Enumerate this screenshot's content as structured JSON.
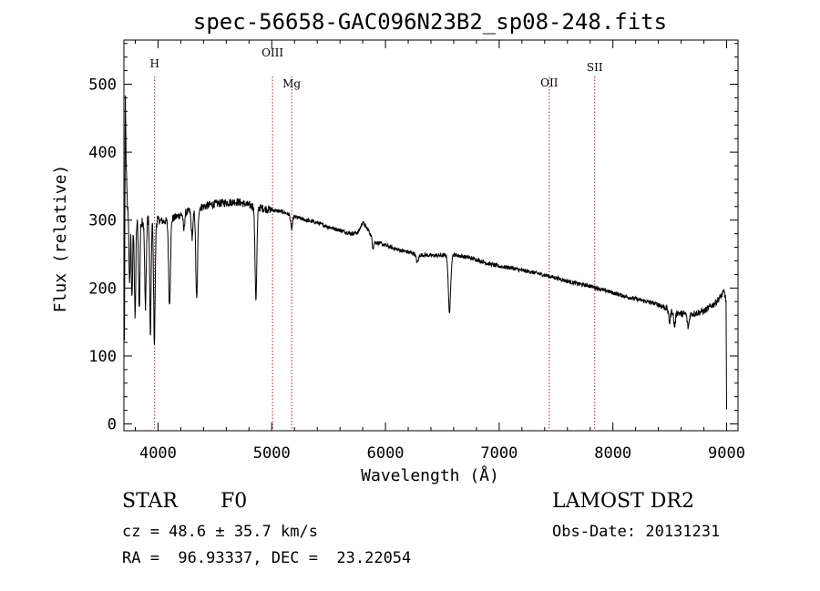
{
  "chart_data": {
    "type": "line",
    "title": "spec-56658-GAC096N23B2_sp08-248.fits",
    "xlabel": "Wavelength (Å)",
    "ylabel": "Flux (relative)",
    "xlim": [
      3700,
      9100
    ],
    "ylim": [
      -10,
      565
    ],
    "xticks": [
      "4000",
      "5000",
      "6000",
      "7000",
      "8000",
      "9000"
    ],
    "yticks": [
      "0",
      "100",
      "200",
      "300",
      "400",
      "500"
    ],
    "grid": false,
    "line_color": "#000000",
    "marker_color": "#b22222",
    "spectral_lines": [
      {
        "name": "H",
        "wavelength": 3970
      },
      {
        "name": "OIII",
        "wavelength": 5007
      },
      {
        "name": "Mg",
        "wavelength": 5175
      },
      {
        "name": "OII",
        "wavelength": 7440
      },
      {
        "name": "SII",
        "wavelength": 7840
      }
    ],
    "continuum": [
      [
        3705,
        120
      ],
      [
        3712,
        480
      ],
      [
        3720,
        380
      ],
      [
        3730,
        320
      ],
      [
        3750,
        300
      ],
      [
        3800,
        295
      ],
      [
        3850,
        300
      ],
      [
        3900,
        300
      ],
      [
        3950,
        302
      ],
      [
        4000,
        300
      ],
      [
        4050,
        298
      ],
      [
        4100,
        300
      ],
      [
        4150,
        304
      ],
      [
        4200,
        308
      ],
      [
        4300,
        315
      ],
      [
        4400,
        320
      ],
      [
        4500,
        324
      ],
      [
        4600,
        326
      ],
      [
        4700,
        327
      ],
      [
        4800,
        322
      ],
      [
        4900,
        318
      ],
      [
        5000,
        315
      ],
      [
        5100,
        312
      ],
      [
        5200,
        305
      ],
      [
        5300,
        300
      ],
      [
        5400,
        296
      ],
      [
        5500,
        290
      ],
      [
        5600,
        285
      ],
      [
        5700,
        280
      ],
      [
        5760,
        282
      ],
      [
        5800,
        297
      ],
      [
        5850,
        285
      ],
      [
        5900,
        268
      ],
      [
        6000,
        263
      ],
      [
        6100,
        257
      ],
      [
        6200,
        253
      ],
      [
        6300,
        249
      ],
      [
        6400,
        248
      ],
      [
        6500,
        248
      ],
      [
        6600,
        249
      ],
      [
        6700,
        246
      ],
      [
        6800,
        242
      ],
      [
        6900,
        236
      ],
      [
        7000,
        232
      ],
      [
        7100,
        230
      ],
      [
        7200,
        226
      ],
      [
        7300,
        223
      ],
      [
        7400,
        219
      ],
      [
        7500,
        215
      ],
      [
        7600,
        210
      ],
      [
        7700,
        206
      ],
      [
        7800,
        203
      ],
      [
        7900,
        198
      ],
      [
        8000,
        193
      ],
      [
        8100,
        188
      ],
      [
        8200,
        184
      ],
      [
        8300,
        180
      ],
      [
        8400,
        176
      ],
      [
        8500,
        168
      ],
      [
        8600,
        162
      ],
      [
        8700,
        162
      ],
      [
        8800,
        166
      ],
      [
        8900,
        178
      ],
      [
        8950,
        188
      ],
      [
        8980,
        195
      ],
      [
        8995,
        180
      ],
      [
        9000,
        20
      ]
    ],
    "absorption_lines": [
      {
        "wavelength": 3750,
        "depth": 100,
        "width": 5
      },
      {
        "wavelength": 3771,
        "depth": 120,
        "width": 5
      },
      {
        "wavelength": 3798,
        "depth": 140,
        "width": 6
      },
      {
        "wavelength": 3835,
        "depth": 130,
        "width": 6
      },
      {
        "wavelength": 3889,
        "depth": 125,
        "width": 7
      },
      {
        "wavelength": 3933,
        "depth": 175,
        "width": 6
      },
      {
        "wavelength": 3968,
        "depth": 180,
        "width": 7
      },
      {
        "wavelength": 4101,
        "depth": 125,
        "width": 8
      },
      {
        "wavelength": 4227,
        "depth": 25,
        "width": 6
      },
      {
        "wavelength": 4300,
        "depth": 40,
        "width": 8
      },
      {
        "wavelength": 4340,
        "depth": 135,
        "width": 8
      },
      {
        "wavelength": 4861,
        "depth": 135,
        "width": 8
      },
      {
        "wavelength": 5175,
        "depth": 20,
        "width": 8
      },
      {
        "wavelength": 5890,
        "depth": 12,
        "width": 6
      },
      {
        "wavelength": 6280,
        "depth": 12,
        "width": 10
      },
      {
        "wavelength": 6563,
        "depth": 85,
        "width": 10
      },
      {
        "wavelength": 8498,
        "depth": 18,
        "width": 8
      },
      {
        "wavelength": 8542,
        "depth": 22,
        "width": 8
      },
      {
        "wavelength": 8662,
        "depth": 20,
        "width": 8
      }
    ]
  },
  "info": {
    "class": "STAR",
    "subclass": "F0",
    "cz": "cz = 48.6 ± 35.7 km/s",
    "radec": "RA =  96.93337, DEC =  23.22054",
    "survey": "LAMOST DR2",
    "obs_date": "Obs-Date: 20131231"
  }
}
